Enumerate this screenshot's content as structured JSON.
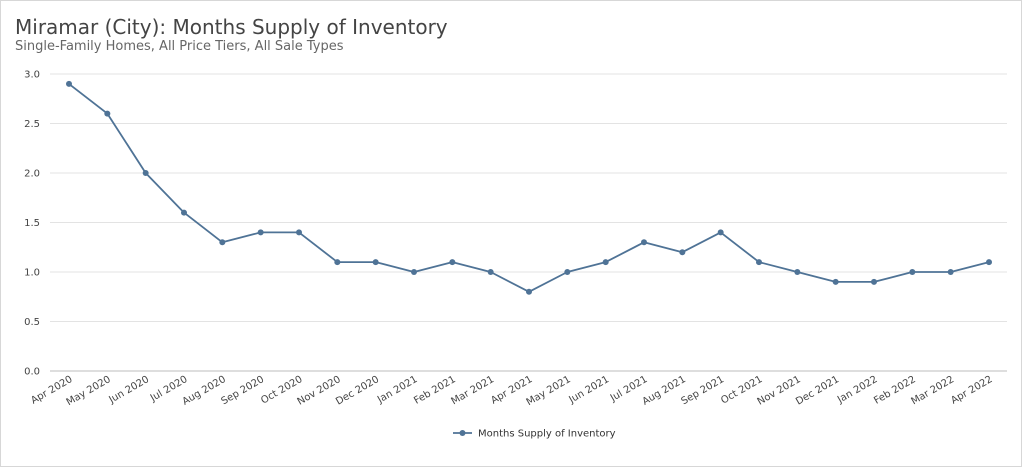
{
  "chart_data": {
    "type": "line",
    "title": "Miramar (City): Months Supply of Inventory",
    "subtitle": "Single-Family Homes, All Price Tiers, All Sale Types",
    "xlabel": "",
    "ylabel": "",
    "categories": [
      "Apr 2020",
      "May 2020",
      "Jun 2020",
      "Jul 2020",
      "Aug 2020",
      "Sep 2020",
      "Oct 2020",
      "Nov 2020",
      "Dec 2020",
      "Jan 2021",
      "Feb 2021",
      "Mar 2021",
      "Apr 2021",
      "May 2021",
      "Jun 2021",
      "Jul 2021",
      "Aug 2021",
      "Sep 2021",
      "Oct 2021",
      "Nov 2021",
      "Dec 2021",
      "Jan 2022",
      "Feb 2022",
      "Mar 2022",
      "Apr 2022"
    ],
    "series": [
      {
        "name": "Months Supply of Inventory",
        "color": "#4f7396",
        "values": [
          2.9,
          2.6,
          2.0,
          1.6,
          1.3,
          1.4,
          1.4,
          1.1,
          1.1,
          1.0,
          1.1,
          1.0,
          0.8,
          1.0,
          1.1,
          1.3,
          1.2,
          1.4,
          1.1,
          1.0,
          0.9,
          0.9,
          1.0,
          1.0,
          1.1
        ]
      }
    ],
    "ylim": [
      0,
      3.0
    ],
    "yticks": [
      "0.0",
      "0.5",
      "1.0",
      "1.5",
      "2.0",
      "2.5",
      "3.0"
    ],
    "grid": true,
    "legend_position": "bottom-center"
  }
}
